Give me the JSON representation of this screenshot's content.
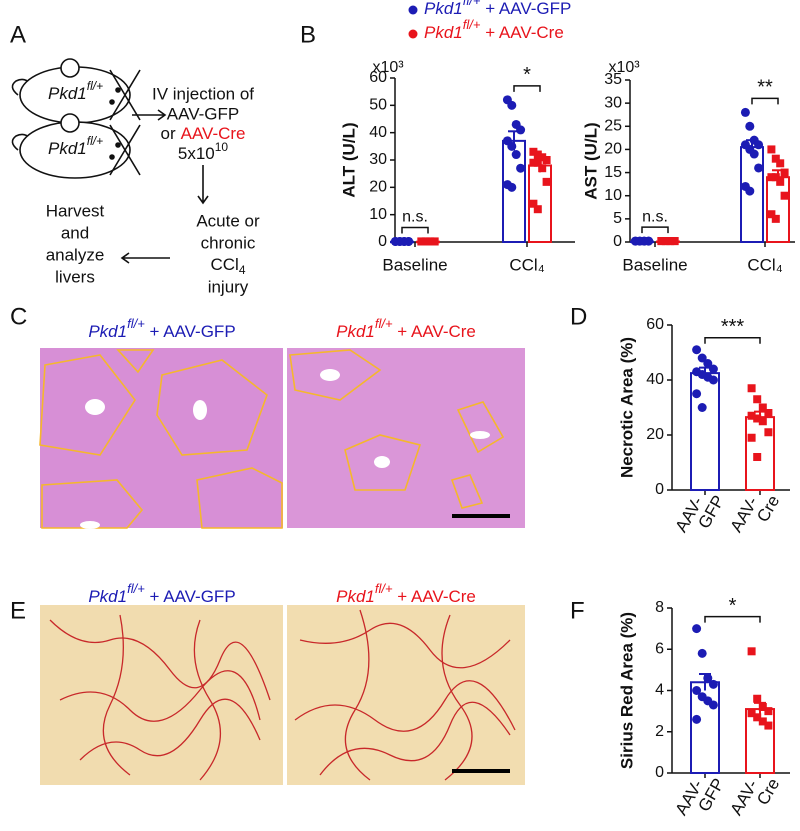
{
  "panel_letters": [
    "A",
    "B",
    "C",
    "D",
    "E",
    "F"
  ],
  "diagram": {
    "mouse_labels": [
      {
        "gene": "Pkd1",
        "allele": "fl/+"
      },
      {
        "gene": "Pkd1",
        "allele": "fl/+"
      }
    ],
    "injection": {
      "line1": "IV injection of",
      "vector1": "AAV-GFP",
      "or": "or",
      "vector2": "AAV-Cre",
      "dose": "5x10",
      "dose_exponent": "10"
    },
    "injury": {
      "lines": [
        "Acute or",
        "chronic"
      ],
      "agent": "CCl",
      "agent_subscript": "4",
      "last": "injury"
    },
    "harvest": [
      "Harvest",
      "and",
      "analyze",
      "livers"
    ]
  },
  "he_titles": [
    {
      "gene": "Pkd1",
      "allele": "fl/+",
      "vector": " + AAV-GFP",
      "color": "#1c1cb4"
    },
    {
      "gene": "Pkd1",
      "allele": "fl/+",
      "vector": " + AAV-Cre",
      "color": "#e8141c"
    }
  ],
  "sirius_titles": [
    {
      "gene": "Pkd1",
      "allele": "fl/+",
      "vector": " + AAV-GFP",
      "color": "#1c1cb4"
    },
    {
      "gene": "Pkd1",
      "allele": "fl/+",
      "vector": " + AAV-Cre",
      "color": "#e8141c"
    }
  ],
  "chart_data": [
    {
      "type": "bar",
      "y_label": "ALT (U/L)",
      "y_multiplier": "x10³",
      "categories": [
        "Baseline",
        "CCl₄"
      ],
      "annotations": [
        "n.s.",
        "*"
      ],
      "ylim": [
        0,
        60
      ],
      "yticks": [
        0,
        10,
        20,
        30,
        40,
        50,
        60
      ],
      "series": [
        {
          "name": " + AAV-GFP",
          "gene": "Pkd1",
          "allele": "fl/+",
          "color": "#1c1cb4",
          "values": [
            0.1,
            37
          ],
          "errors": [
            0.05,
            3.5
          ],
          "points": [
            [
              0.2,
              0.2,
              0.2,
              0.2,
              0.2,
              0.2,
              0.2,
              0.2
            ],
            [
              52,
              50,
              43,
              41,
              37,
              35,
              32,
              27,
              21,
              20
            ]
          ]
        },
        {
          "name": " + AAV-Cre",
          "gene": "Pkd1",
          "allele": "fl/+",
          "color": "#e8141c",
          "values": [
            0.1,
            28
          ],
          "errors": [
            0.05,
            2.5
          ],
          "points": [
            [
              0.2,
              0.2,
              0.2,
              0.2,
              0.2,
              0.2,
              0.2,
              0.2
            ],
            [
              33,
              32,
              31,
              30,
              29,
              29,
              27,
              22,
              14,
              12
            ]
          ]
        }
      ]
    },
    {
      "type": "bar",
      "y_label": "AST (U/L)",
      "y_multiplier": "x10³",
      "categories": [
        "Baseline",
        "CCl₄"
      ],
      "annotations": [
        "n.s.",
        "**"
      ],
      "ylim": [
        0,
        35
      ],
      "yticks": [
        0,
        5,
        10,
        15,
        20,
        25,
        30,
        35
      ],
      "series": [
        {
          "color": "#1c1cb4",
          "values": [
            0.1,
            20.5
          ],
          "errors": [
            0.05,
            1.5
          ],
          "points": [
            [
              0.2,
              0.2,
              0.2,
              0.2,
              0.2,
              0.2,
              0.2,
              0.2
            ],
            [
              28,
              25,
              22,
              21,
              21,
              20,
              19,
              16,
              12,
              11
            ]
          ]
        },
        {
          "color": "#e8141c",
          "values": [
            0.1,
            14
          ],
          "errors": [
            0.05,
            1.5
          ],
          "points": [
            [
              0.2,
              0.2,
              0.2,
              0.2,
              0.2,
              0.2,
              0.2,
              0.2
            ],
            [
              20,
              18,
              17,
              15,
              14,
              14,
              13,
              10,
              6,
              5
            ]
          ]
        }
      ]
    },
    {
      "type": "bar",
      "y_label": "Necrotic Area (%)",
      "categories": [
        [
          "AAV-",
          "GFP"
        ],
        [
          "AAV-",
          "Cre"
        ]
      ],
      "annotations": [
        "***"
      ],
      "ylim": [
        0,
        60
      ],
      "yticks": [
        0,
        20,
        40,
        60
      ],
      "colors": [
        "#1c1cb4",
        "#e8141c"
      ],
      "values": [
        42.5,
        26.5
      ],
      "errors": [
        2,
        2
      ],
      "points": [
        [
          51,
          48,
          46,
          44,
          43,
          42,
          41,
          40,
          35,
          30
        ],
        [
          37,
          33,
          30,
          28,
          27,
          26,
          25,
          21,
          19,
          12
        ]
      ]
    },
    {
      "type": "bar",
      "y_label": "Sirius Red Area (%)",
      "categories": [
        [
          "AAV-",
          "GFP"
        ],
        [
          "AAV-",
          "Cre"
        ]
      ],
      "annotations": [
        "*"
      ],
      "ylim": [
        0,
        8
      ],
      "yticks": [
        0,
        2,
        4,
        6,
        8
      ],
      "colors": [
        "#1c1cb4",
        "#e8141c"
      ],
      "values": [
        4.4,
        3.1
      ],
      "errors": [
        0.4,
        0.3
      ],
      "points": [
        [
          7.0,
          5.8,
          4.6,
          4.3,
          4.0,
          3.7,
          3.5,
          3.3,
          2.6
        ],
        [
          5.9,
          3.6,
          3.2,
          3.0,
          2.9,
          2.7,
          2.5,
          2.3
        ]
      ]
    }
  ]
}
